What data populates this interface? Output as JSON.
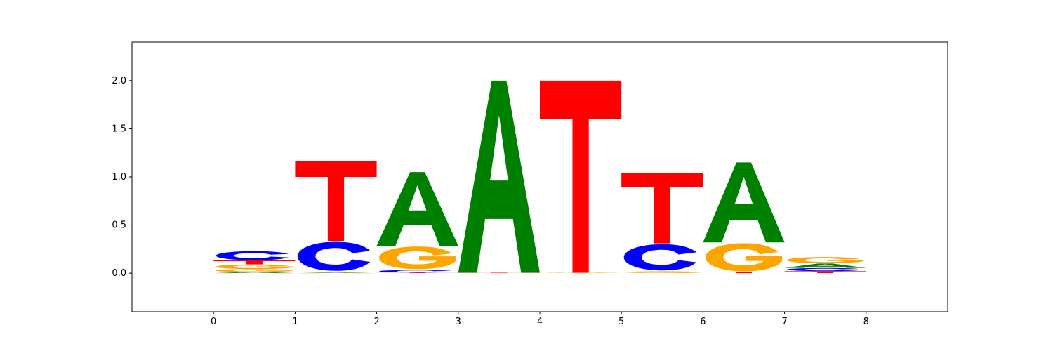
{
  "chart_data": {
    "type": "sequence-logo",
    "title": "",
    "xlabel": "",
    "ylabel": "",
    "xlim": [
      -1,
      9
    ],
    "ylim": [
      -0.4,
      2.4
    ],
    "x_ticks": [
      "0",
      "1",
      "2",
      "3",
      "4",
      "5",
      "6",
      "7",
      "8"
    ],
    "y_ticks": [
      "0.0",
      "0.5",
      "1.0",
      "1.5",
      "2.0"
    ],
    "colors": {
      "A": "#008000",
      "C": "#0000ff",
      "G": "#ffa500",
      "T": "#ff0000"
    },
    "positions": [
      {
        "x": 0,
        "letters": [
          {
            "base": "A",
            "height": 0.012
          },
          {
            "base": "G",
            "height": 0.03
          },
          {
            "base": "G",
            "height": 0.05
          },
          {
            "base": "T",
            "height": 0.04
          },
          {
            "base": "C",
            "height": 0.1
          }
        ]
      },
      {
        "x": 1,
        "letters": [
          {
            "base": "A",
            "height": 0.005
          },
          {
            "base": "G",
            "height": 0.01
          },
          {
            "base": "C",
            "height": 0.32
          },
          {
            "base": "T",
            "height": 0.83
          }
        ]
      },
      {
        "x": 2,
        "letters": [
          {
            "base": "T",
            "height": 0.005
          },
          {
            "base": "C",
            "height": 0.03
          },
          {
            "base": "G",
            "height": 0.25
          },
          {
            "base": "A",
            "height": 0.765
          }
        ]
      },
      {
        "x": 3,
        "letters": [
          {
            "base": "T",
            "height": 0.005
          },
          {
            "base": "A",
            "height": 1.995
          }
        ]
      },
      {
        "x": 4,
        "letters": [
          {
            "base": "G",
            "height": 0.005
          },
          {
            "base": "T",
            "height": 1.995
          }
        ]
      },
      {
        "x": 5,
        "letters": [
          {
            "base": "G",
            "height": 0.02
          },
          {
            "base": "C",
            "height": 0.29
          },
          {
            "base": "T",
            "height": 0.73
          }
        ]
      },
      {
        "x": 6,
        "letters": [
          {
            "base": "T",
            "height": 0.01
          },
          {
            "base": "G",
            "height": 0.31
          },
          {
            "base": "A",
            "height": 0.83
          }
        ]
      },
      {
        "x": 7,
        "letters": [
          {
            "base": "T",
            "height": 0.02
          },
          {
            "base": "C",
            "height": 0.035
          },
          {
            "base": "A",
            "height": 0.045
          },
          {
            "base": "G",
            "height": 0.07
          }
        ]
      }
    ]
  }
}
